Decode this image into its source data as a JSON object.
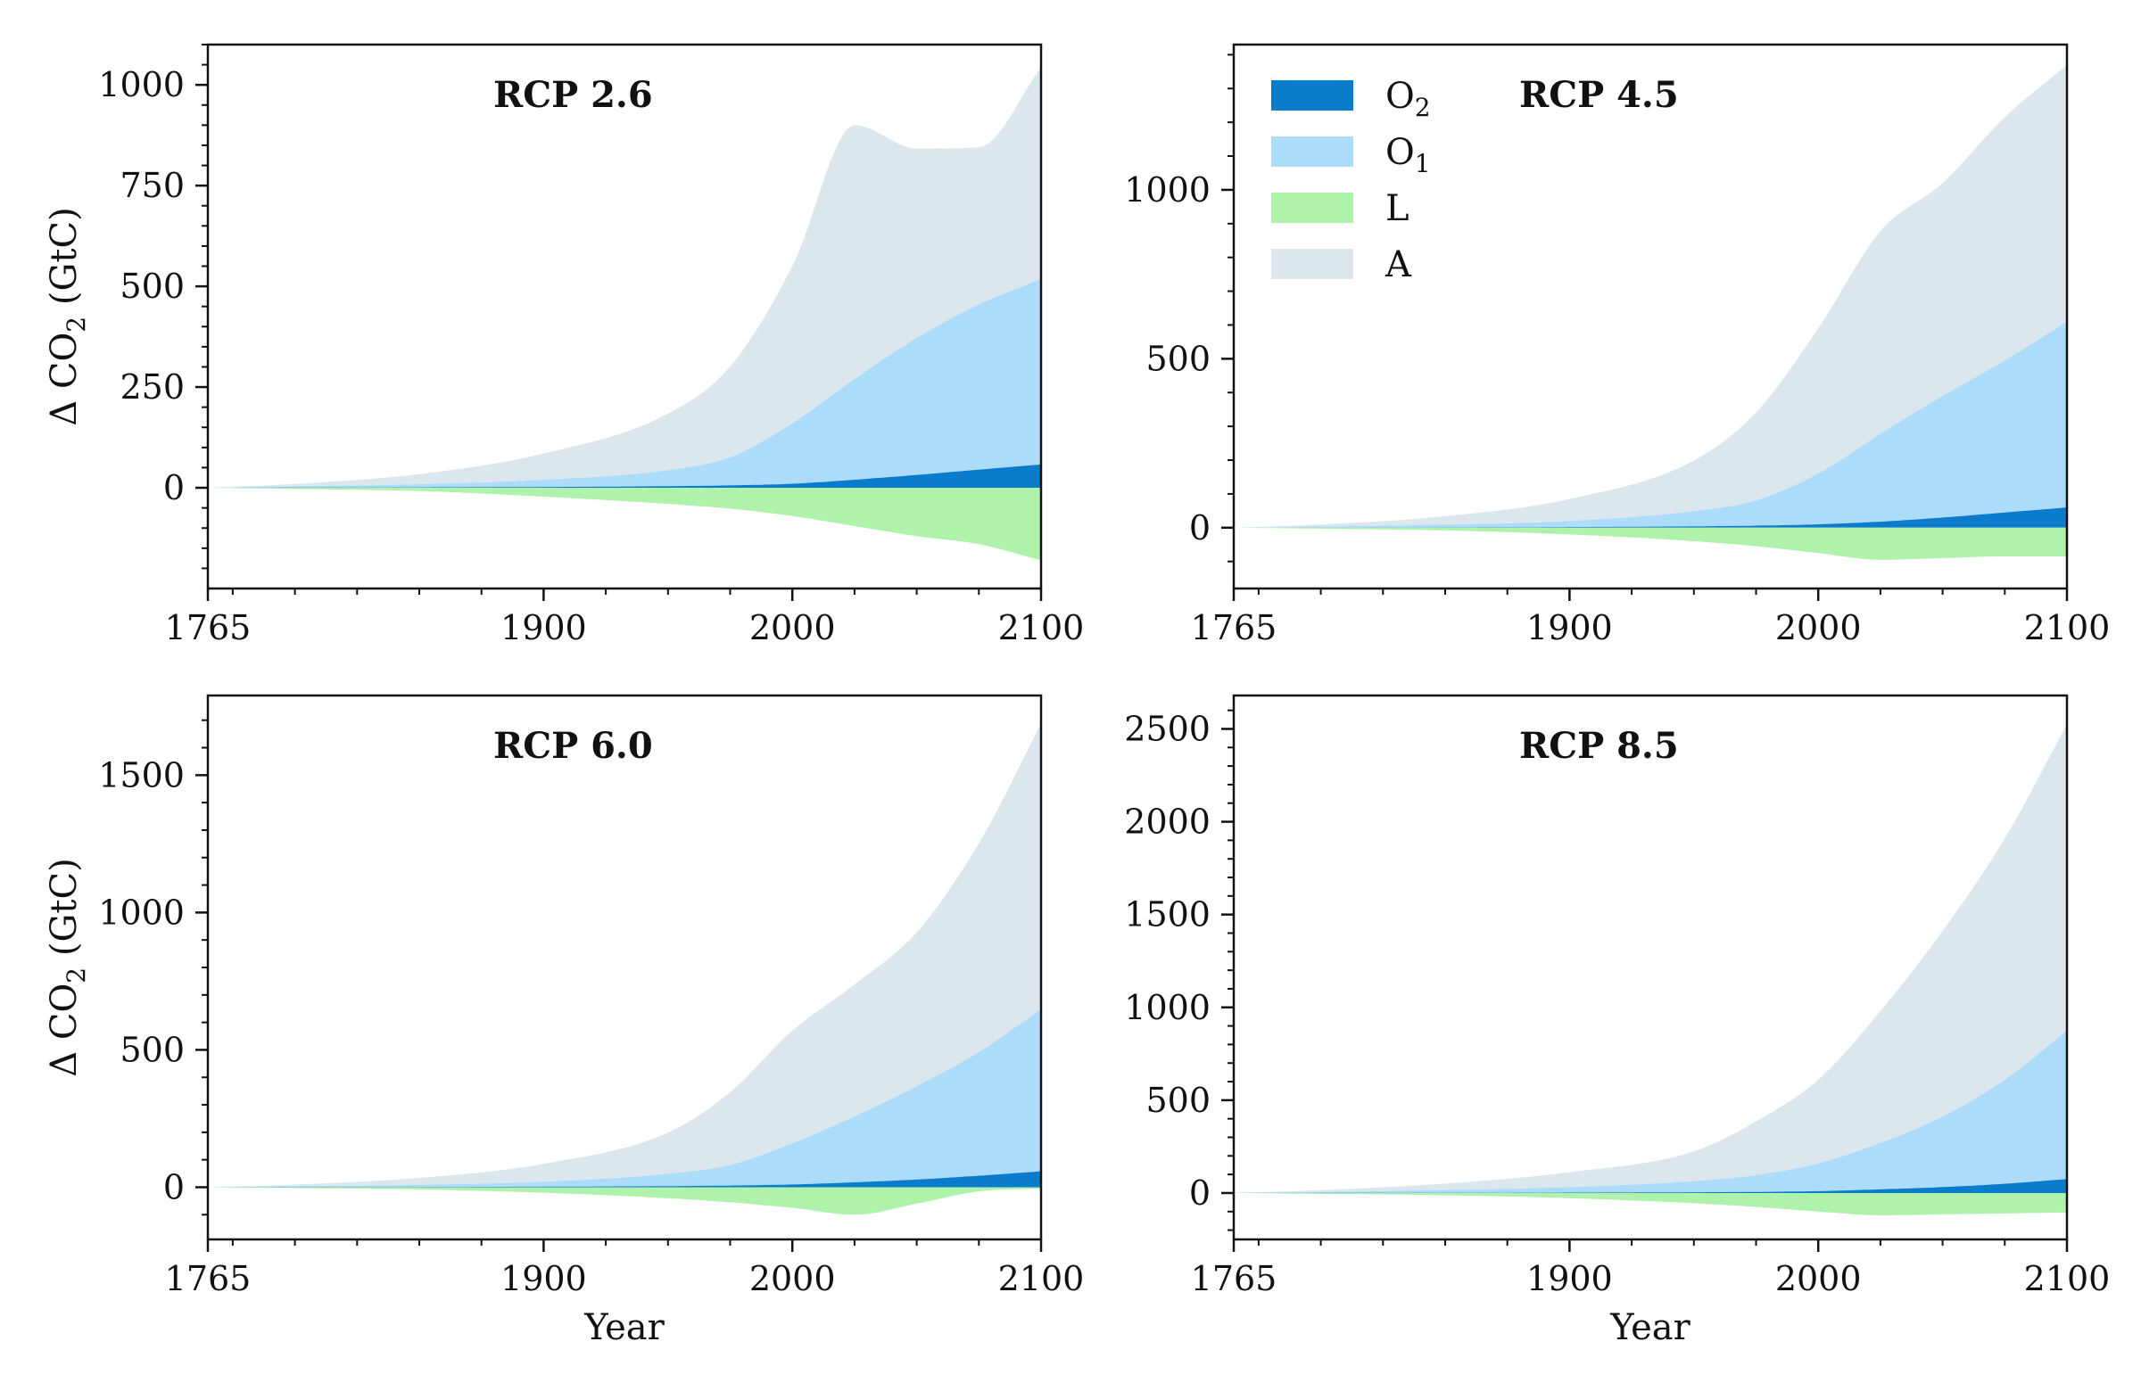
{
  "colors": {
    "O2": "#0a7ccb",
    "O1": "#acdcfa",
    "L": "#aef2ab",
    "A": "#dce6ed"
  },
  "legend": [
    {
      "key": "O2",
      "base": "O",
      "sub": "2"
    },
    {
      "key": "O1",
      "base": "O",
      "sub": "1"
    },
    {
      "key": "L",
      "base": "L",
      "sub": ""
    },
    {
      "key": "A",
      "base": "A",
      "sub": ""
    }
  ],
  "ylabel": {
    "prefix": "Δ CO",
    "sub": "2",
    "suffix": " (GtC)"
  },
  "xlabel": "Year",
  "chart_data": [
    {
      "type": "area",
      "title": "RCP 2.6",
      "ylim": [
        -250,
        1100
      ],
      "yticks": [
        0,
        250,
        500,
        750,
        1000
      ],
      "ytick_labels": [
        "0",
        "250",
        "500",
        "750",
        "1000"
      ],
      "xlim": [
        1765,
        2100
      ],
      "xticks": [
        1765,
        1900,
        2000,
        2100
      ],
      "xtick_labels": [
        "1765",
        "1900",
        "2000",
        "2100"
      ],
      "x": [
        1765,
        1800,
        1850,
        1900,
        1950,
        1975,
        2000,
        2025,
        2050,
        2075,
        2100
      ],
      "series": [
        {
          "name": "O2",
          "values": [
            0,
            0.5,
            1,
            2,
            4,
            6,
            10,
            20,
            32,
            45,
            58
          ]
        },
        {
          "name": "O1",
          "values": [
            0,
            3,
            8,
            18,
            40,
            70,
            150,
            250,
            340,
            410,
            460
          ]
        },
        {
          "name": "A",
          "values": [
            0,
            6,
            25,
            65,
            140,
            225,
            390,
            630,
            470,
            390,
            525
          ]
        },
        {
          "name": "L",
          "values": [
            0,
            -3,
            -8,
            -22,
            -40,
            -52,
            -70,
            -95,
            -120,
            -140,
            -180
          ]
        }
      ]
    },
    {
      "type": "area",
      "title": "RCP 4.5",
      "ylim": [
        -180,
        1430
      ],
      "yticks": [
        0,
        500,
        1000
      ],
      "ytick_labels": [
        "0",
        "500",
        "1000"
      ],
      "xlim": [
        1765,
        2100
      ],
      "xticks": [
        1765,
        1900,
        2000,
        2100
      ],
      "xtick_labels": [
        "1765",
        "1900",
        "2000",
        "2100"
      ],
      "x": [
        1765,
        1800,
        1850,
        1900,
        1950,
        1975,
        2000,
        2025,
        2050,
        2075,
        2100
      ],
      "series": [
        {
          "name": "O2",
          "values": [
            0,
            0.5,
            1,
            2,
            4,
            6,
            10,
            18,
            30,
            45,
            60
          ]
        },
        {
          "name": "O1",
          "values": [
            0,
            3,
            8,
            18,
            45,
            75,
            150,
            260,
            360,
            450,
            550
          ]
        },
        {
          "name": "A",
          "values": [
            0,
            6,
            25,
            65,
            150,
            260,
            430,
            600,
            630,
            720,
            760
          ]
        },
        {
          "name": "L",
          "values": [
            0,
            -3,
            -8,
            -20,
            -40,
            -55,
            -75,
            -95,
            -90,
            -85,
            -85
          ]
        }
      ]
    },
    {
      "type": "area",
      "title": "RCP 6.0",
      "ylim": [
        -190,
        1790
      ],
      "yticks": [
        0,
        500,
        1000,
        1500
      ],
      "ytick_labels": [
        "0",
        "500",
        "1000",
        "1500"
      ],
      "xlim": [
        1765,
        2100
      ],
      "xticks": [
        1765,
        1900,
        2000,
        2100
      ],
      "xtick_labels": [
        "1765",
        "1900",
        "2000",
        "2100"
      ],
      "x": [
        1765,
        1800,
        1850,
        1900,
        1950,
        1975,
        2000,
        2025,
        2050,
        2075,
        2100
      ],
      "series": [
        {
          "name": "O2",
          "values": [
            0,
            0.5,
            1,
            2,
            4,
            6,
            10,
            18,
            28,
            42,
            58
          ]
        },
        {
          "name": "O1",
          "values": [
            0,
            3,
            8,
            18,
            45,
            75,
            150,
            240,
            340,
            450,
            590
          ]
        },
        {
          "name": "A",
          "values": [
            0,
            6,
            25,
            65,
            150,
            265,
            410,
            480,
            560,
            760,
            1040
          ]
        },
        {
          "name": "L",
          "values": [
            0,
            -3,
            -8,
            -20,
            -40,
            -55,
            -75,
            -100,
            -60,
            -15,
            -5
          ]
        }
      ]
    },
    {
      "type": "area",
      "title": "RCP 8.5",
      "ylim": [
        -250,
        2680
      ],
      "yticks": [
        0,
        500,
        1000,
        1500,
        2000,
        2500
      ],
      "ytick_labels": [
        "0",
        "500",
        "1000",
        "1500",
        "2000",
        "2500"
      ],
      "xlim": [
        1765,
        2100
      ],
      "xticks": [
        1765,
        1900,
        2000,
        2100
      ],
      "xtick_labels": [
        "1765",
        "1900",
        "2000",
        "2100"
      ],
      "x": [
        1765,
        1800,
        1850,
        1900,
        1950,
        1975,
        2000,
        2025,
        2050,
        2075,
        2100
      ],
      "series": [
        {
          "name": "O2",
          "values": [
            0,
            0.5,
            1,
            2,
            4,
            6,
            10,
            20,
            32,
            50,
            75
          ]
        },
        {
          "name": "O1",
          "values": [
            0,
            5,
            15,
            30,
            60,
            90,
            150,
            250,
            380,
            560,
            800
          ]
        },
        {
          "name": "A",
          "values": [
            0,
            10,
            35,
            80,
            160,
            290,
            450,
            710,
            1000,
            1300,
            1650
          ]
        },
        {
          "name": "L",
          "values": [
            0,
            -5,
            -12,
            -28,
            -55,
            -75,
            -100,
            -120,
            -115,
            -110,
            -105
          ]
        }
      ]
    }
  ]
}
